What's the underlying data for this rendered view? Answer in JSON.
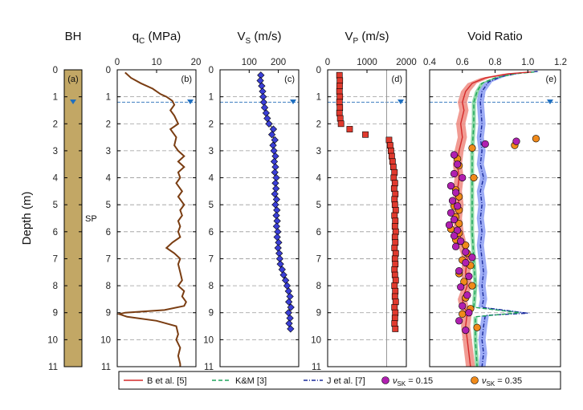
{
  "chart_data": {
    "type": "multi-panel depth profile",
    "ylabel": "Depth (m)",
    "ylim": [
      0,
      11
    ],
    "yticks": [
      "0",
      "1",
      "2",
      "3",
      "4",
      "5",
      "6",
      "7",
      "8",
      "9",
      "10",
      "11"
    ],
    "water_table_depth": 1.2,
    "colors": {
      "qc": "#7a3d12",
      "vs_fill": "#3b3fd6",
      "vp_fill": "#e03a2e",
      "dash": "#3f7fc0",
      "grid": "#9a9a9a",
      "B": "#d42a2a",
      "B_band": "#ef8a80",
      "KM": "#1fa35a",
      "KM_band": "#7dd39a",
      "J": "#1a2a9a",
      "J_band": "#8c9ef5",
      "sk015": "#b020b0",
      "sk035": "#f08a1a",
      "soil": "#c2a765"
    },
    "panels": {
      "bh": {
        "title": "BH",
        "tag": "(a)",
        "soil_label": "SP"
      },
      "qc": {
        "title": "q",
        "title_sub": "C",
        "title_unit": " (MPa)",
        "tag": "(b)",
        "xlim": [
          0,
          20
        ],
        "xticks": [
          "0",
          "10",
          "20"
        ],
        "profile": [
          [
            2,
            0.1
          ],
          [
            3.5,
            0.3
          ],
          [
            6,
            0.5
          ],
          [
            9,
            0.7
          ],
          [
            11,
            0.9
          ],
          [
            12.5,
            1
          ],
          [
            14,
            1.15
          ],
          [
            14.5,
            1.3
          ],
          [
            13.5,
            1.5
          ],
          [
            14.5,
            1.7
          ],
          [
            15.5,
            2
          ],
          [
            13.5,
            2.2
          ],
          [
            15,
            2.5
          ],
          [
            14.5,
            2.8
          ],
          [
            15.5,
            3
          ],
          [
            17,
            3.2
          ],
          [
            15.5,
            3.4
          ],
          [
            17,
            3.6
          ],
          [
            15.5,
            3.8
          ],
          [
            16,
            4
          ],
          [
            15,
            4.2
          ],
          [
            16.5,
            4.5
          ],
          [
            15.5,
            4.7
          ],
          [
            17,
            5
          ],
          [
            16,
            5.2
          ],
          [
            16.5,
            5.4
          ],
          [
            15.5,
            5.6
          ],
          [
            16,
            5.8
          ],
          [
            15.5,
            6
          ],
          [
            16,
            6.2
          ],
          [
            14,
            6.4
          ],
          [
            12.5,
            6.6
          ],
          [
            14.5,
            6.8
          ],
          [
            16,
            7
          ],
          [
            15.5,
            7.2
          ],
          [
            16,
            7.5
          ],
          [
            16.5,
            7.8
          ],
          [
            15.5,
            8
          ],
          [
            17,
            8.2
          ],
          [
            16.5,
            8.4
          ],
          [
            17.5,
            8.6
          ],
          [
            17,
            8.75
          ],
          [
            12,
            8.9
          ],
          [
            2,
            9
          ],
          [
            0.5,
            9.05
          ],
          [
            2.5,
            9.15
          ],
          [
            10,
            9.3
          ],
          [
            15,
            9.5
          ],
          [
            15.5,
            9.8
          ],
          [
            15,
            10
          ],
          [
            16,
            10.3
          ],
          [
            15.5,
            10.6
          ],
          [
            16,
            10.9
          ],
          [
            16,
            11
          ]
        ]
      },
      "vs": {
        "title": "V",
        "title_sub": "S",
        "title_unit": " (m/s)",
        "tag": "(c)",
        "xlim": [
          0,
          270
        ],
        "xticks": [
          "100",
          "200"
        ],
        "tickvals": [
          100,
          200
        ],
        "points": [
          [
            140,
            0.2
          ],
          [
            138,
            0.4
          ],
          [
            143,
            0.6
          ],
          [
            146,
            0.8
          ],
          [
            148,
            1
          ],
          [
            150,
            1.2
          ],
          [
            153,
            1.4
          ],
          [
            158,
            1.6
          ],
          [
            162,
            1.8
          ],
          [
            168,
            2
          ],
          [
            183,
            2.2
          ],
          [
            178,
            2.4
          ],
          [
            188,
            2.6
          ],
          [
            182,
            2.8
          ],
          [
            185,
            3
          ],
          [
            190,
            3.2
          ],
          [
            186,
            3.4
          ],
          [
            190,
            3.6
          ],
          [
            188,
            3.8
          ],
          [
            193,
            4
          ],
          [
            190,
            4.2
          ],
          [
            192,
            4.4
          ],
          [
            188,
            4.6
          ],
          [
            194,
            4.8
          ],
          [
            190,
            5
          ],
          [
            195,
            5.2
          ],
          [
            193,
            5.4
          ],
          [
            196,
            5.6
          ],
          [
            194,
            5.8
          ],
          [
            198,
            6
          ],
          [
            196,
            6.2
          ],
          [
            201,
            6.4
          ],
          [
            199,
            6.6
          ],
          [
            203,
            6.8
          ],
          [
            205,
            7
          ],
          [
            207,
            7.2
          ],
          [
            213,
            7.4
          ],
          [
            218,
            7.6
          ],
          [
            225,
            7.8
          ],
          [
            230,
            8
          ],
          [
            235,
            8.2
          ],
          [
            240,
            8.4
          ],
          [
            236,
            8.6
          ],
          [
            243,
            8.8
          ],
          [
            235,
            9
          ],
          [
            240,
            9.2
          ],
          [
            237,
            9.4
          ],
          [
            242,
            9.6
          ]
        ]
      },
      "vp": {
        "title": "V",
        "title_sub": "P",
        "title_unit": " (m/s)",
        "tag": "(d)",
        "xlim": [
          0,
          2000
        ],
        "xticks": [
          "0",
          "1000",
          "2000"
        ],
        "ref_line": 1500,
        "points": [
          [
            300,
            0.2
          ],
          [
            310,
            0.4
          ],
          [
            305,
            0.6
          ],
          [
            300,
            0.8
          ],
          [
            310,
            1
          ],
          [
            300,
            1.2
          ],
          [
            310,
            1.4
          ],
          [
            300,
            1.6
          ],
          [
            320,
            1.8
          ],
          [
            340,
            2
          ],
          [
            560,
            2.2
          ],
          [
            960,
            2.4
          ],
          [
            1560,
            2.6
          ],
          [
            1590,
            2.8
          ],
          [
            1610,
            3
          ],
          [
            1630,
            3.2
          ],
          [
            1650,
            3.4
          ],
          [
            1670,
            3.6
          ],
          [
            1700,
            3.8
          ],
          [
            1680,
            4
          ],
          [
            1710,
            4.2
          ],
          [
            1690,
            4.4
          ],
          [
            1720,
            4.6
          ],
          [
            1700,
            4.8
          ],
          [
            1710,
            5
          ],
          [
            1730,
            5.2
          ],
          [
            1700,
            5.4
          ],
          [
            1720,
            5.6
          ],
          [
            1710,
            5.8
          ],
          [
            1730,
            6
          ],
          [
            1710,
            6.2
          ],
          [
            1720,
            6.4
          ],
          [
            1700,
            6.6
          ],
          [
            1730,
            6.8
          ],
          [
            1710,
            7
          ],
          [
            1720,
            7.2
          ],
          [
            1700,
            7.4
          ],
          [
            1710,
            7.6
          ],
          [
            1730,
            7.8
          ],
          [
            1700,
            8
          ],
          [
            1720,
            8.2
          ],
          [
            1710,
            8.4
          ],
          [
            1730,
            8.6
          ],
          [
            1700,
            8.8
          ],
          [
            1720,
            9
          ],
          [
            1710,
            9.2
          ],
          [
            1700,
            9.4
          ],
          [
            1720,
            9.6
          ]
        ]
      },
      "vr": {
        "title": "Void Ratio",
        "tag": "(e)",
        "xlim": [
          0.4,
          1.2
        ],
        "xticks": [
          "0.4",
          "0.6",
          "0.8",
          "1.0",
          "1.2"
        ],
        "B": {
          "line": [
            [
              1.02,
              0.08
            ],
            [
              0.88,
              0.15
            ],
            [
              0.74,
              0.3
            ],
            [
              0.66,
              0.5
            ],
            [
              0.62,
              0.8
            ],
            [
              0.6,
              1.2
            ],
            [
              0.61,
              1.5
            ],
            [
              0.59,
              2
            ],
            [
              0.6,
              2.5
            ],
            [
              0.58,
              3
            ],
            [
              0.57,
              3.5
            ],
            [
              0.58,
              4
            ],
            [
              0.57,
              4.5
            ],
            [
              0.58,
              5
            ],
            [
              0.57,
              5.5
            ],
            [
              0.58,
              6
            ],
            [
              0.6,
              6.5
            ],
            [
              0.63,
              7
            ],
            [
              0.62,
              7.5
            ],
            [
              0.63,
              8
            ],
            [
              0.6,
              8.5
            ],
            [
              0.61,
              8.8
            ],
            [
              0.63,
              9
            ],
            [
              0.62,
              9.5
            ],
            [
              0.63,
              10
            ],
            [
              0.64,
              10.5
            ],
            [
              0.65,
              11
            ]
          ],
          "band": 0.028
        },
        "KM": {
          "line": [
            [
              1.04,
              0.08
            ],
            [
              0.92,
              0.15
            ],
            [
              0.8,
              0.3
            ],
            [
              0.72,
              0.5
            ],
            [
              0.69,
              0.8
            ],
            [
              0.67,
              1.2
            ],
            [
              0.67,
              2
            ],
            [
              0.66,
              3
            ],
            [
              0.66,
              4
            ],
            [
              0.66,
              5
            ],
            [
              0.66,
              6
            ],
            [
              0.67,
              7
            ],
            [
              0.68,
              8
            ],
            [
              0.67,
              8.8
            ],
            [
              0.95,
              9
            ],
            [
              0.68,
              9.15
            ],
            [
              0.68,
              10
            ],
            [
              0.69,
              11
            ]
          ],
          "band": 0.012
        },
        "J": {
          "line": [
            [
              1.06,
              0.06
            ],
            [
              0.95,
              0.12
            ],
            [
              0.84,
              0.25
            ],
            [
              0.76,
              0.45
            ],
            [
              0.72,
              0.8
            ],
            [
              0.71,
              1.2
            ],
            [
              0.72,
              2
            ],
            [
              0.71,
              2.5
            ],
            [
              0.72,
              3
            ],
            [
              0.71,
              3.5
            ],
            [
              0.73,
              4
            ],
            [
              0.71,
              4.5
            ],
            [
              0.72,
              5
            ],
            [
              0.71,
              5.5
            ],
            [
              0.72,
              6
            ],
            [
              0.71,
              6.5
            ],
            [
              0.72,
              7
            ],
            [
              0.73,
              7.5
            ],
            [
              0.72,
              8
            ],
            [
              0.73,
              8.5
            ],
            [
              0.72,
              8.8
            ],
            [
              1.0,
              9.02
            ],
            [
              0.74,
              9.1
            ],
            [
              0.73,
              9.5
            ],
            [
              0.72,
              10
            ],
            [
              0.73,
              10.5
            ],
            [
              0.72,
              11
            ]
          ],
          "band": 0.022
        },
        "sk015": {
          "points": [
            [
              0.93,
              2.65
            ],
            [
              0.74,
              2.75
            ],
            [
              0.55,
              3.15
            ],
            [
              0.57,
              3.5
            ],
            [
              0.55,
              3.85
            ],
            [
              0.6,
              4
            ],
            [
              0.53,
              4.3
            ],
            [
              0.56,
              4.55
            ],
            [
              0.54,
              4.85
            ],
            [
              0.57,
              5.05
            ],
            [
              0.53,
              5.3
            ],
            [
              0.55,
              5.55
            ],
            [
              0.52,
              5.75
            ],
            [
              0.57,
              5.95
            ],
            [
              0.55,
              6.15
            ],
            [
              0.59,
              6.35
            ],
            [
              0.56,
              6.55
            ],
            [
              0.62,
              6.75
            ],
            [
              0.66,
              6.95
            ],
            [
              0.62,
              7.15
            ],
            [
              0.58,
              7.45
            ],
            [
              0.64,
              7.65
            ],
            [
              0.59,
              8.05
            ],
            [
              0.63,
              8.35
            ],
            [
              0.6,
              8.75
            ],
            [
              0.64,
              9
            ],
            [
              0.58,
              9.3
            ],
            [
              0.62,
              9.65
            ]
          ]
        },
        "sk035": {
          "points": [
            [
              1.05,
              2.55
            ],
            [
              0.92,
              2.8
            ],
            [
              0.66,
              2.9
            ],
            [
              0.57,
              3.3
            ],
            [
              0.58,
              3.55
            ],
            [
              0.67,
              4
            ],
            [
              0.56,
              4.45
            ],
            [
              0.58,
              4.7
            ],
            [
              0.55,
              5.05
            ],
            [
              0.58,
              5.2
            ],
            [
              0.56,
              5.45
            ],
            [
              0.58,
              5.7
            ],
            [
              0.53,
              5.9
            ],
            [
              0.58,
              6.05
            ],
            [
              0.56,
              6.3
            ],
            [
              0.62,
              6.5
            ],
            [
              0.63,
              6.8
            ],
            [
              0.6,
              7.05
            ],
            [
              0.65,
              7.25
            ],
            [
              0.58,
              7.55
            ],
            [
              0.61,
              7.85
            ],
            [
              0.66,
              8
            ],
            [
              0.62,
              8.45
            ],
            [
              0.65,
              8.85
            ],
            [
              0.6,
              9.05
            ],
            [
              0.69,
              9.55
            ]
          ]
        }
      }
    },
    "legend": [
      {
        "key": "B",
        "label": "B et al. [5]"
      },
      {
        "key": "KM",
        "label": "K&M [3]"
      },
      {
        "key": "J",
        "label": "J et al. [7]"
      },
      {
        "key": "sk015",
        "label_pre": "ν",
        "label_sub": "SK",
        "label_post": " = 0.15"
      },
      {
        "key": "sk035",
        "label_pre": "ν",
        "label_sub": "SK",
        "label_post": " = 0.35"
      }
    ]
  }
}
